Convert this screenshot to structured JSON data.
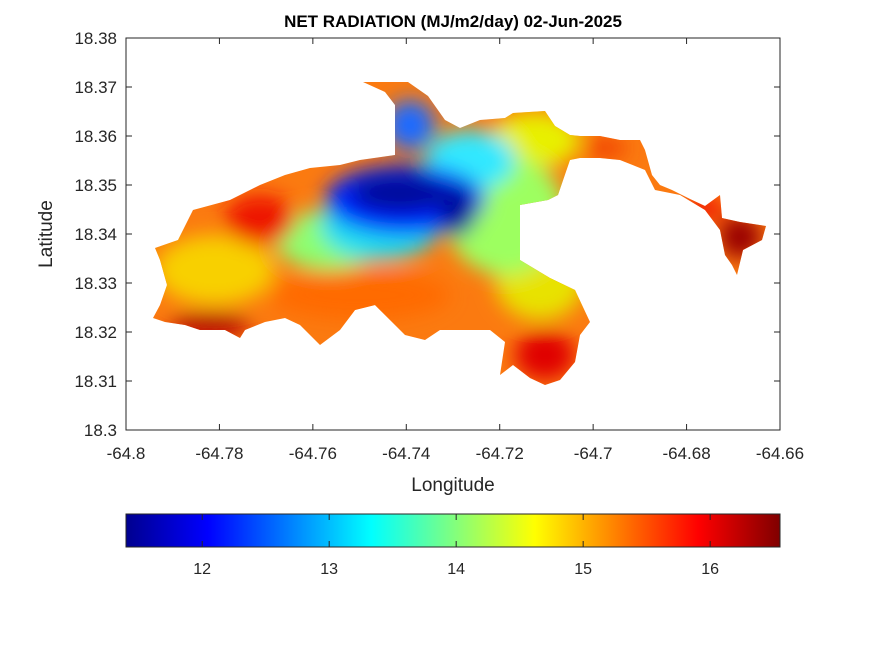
{
  "chart_data": {
    "type": "heatmap",
    "title": "NET RADIATION (MJ/m2/day) 02-Jun-2025",
    "xlabel": "Longitude",
    "ylabel": "Latitude",
    "xlim": [
      -64.8,
      -64.66
    ],
    "ylim": [
      18.3,
      18.38
    ],
    "xticks": [
      "-64.8",
      "-64.78",
      "-64.76",
      "-64.74",
      "-64.72",
      "-64.7",
      "-64.68",
      "-64.66"
    ],
    "yticks": [
      "18.3",
      "18.31",
      "18.32",
      "18.33",
      "18.34",
      "18.35",
      "18.36",
      "18.37",
      "18.38"
    ],
    "grid": false,
    "colormap": "jet",
    "colorbar": {
      "orientation": "horizontal",
      "range": [
        11.4,
        16.55
      ],
      "ticks": [
        "12",
        "13",
        "14",
        "15",
        "16"
      ]
    },
    "regions": [
      {
        "name": "central-low",
        "level": 11.6,
        "lon": -64.738,
        "lat": 18.346
      },
      {
        "name": "northeast-mid",
        "level": 14.5,
        "lon": -64.712,
        "lat": 18.357
      },
      {
        "name": "west-high",
        "level": 16.0,
        "lon": -64.776,
        "lat": 18.341
      },
      {
        "name": "southwest-high",
        "level": 16.2,
        "lon": -64.78,
        "lat": 18.321
      },
      {
        "name": "south-high",
        "level": 16.3,
        "lon": -64.712,
        "lat": 18.313
      },
      {
        "name": "east-max",
        "level": 16.5,
        "lon": -64.668,
        "lat": 18.338
      }
    ]
  }
}
